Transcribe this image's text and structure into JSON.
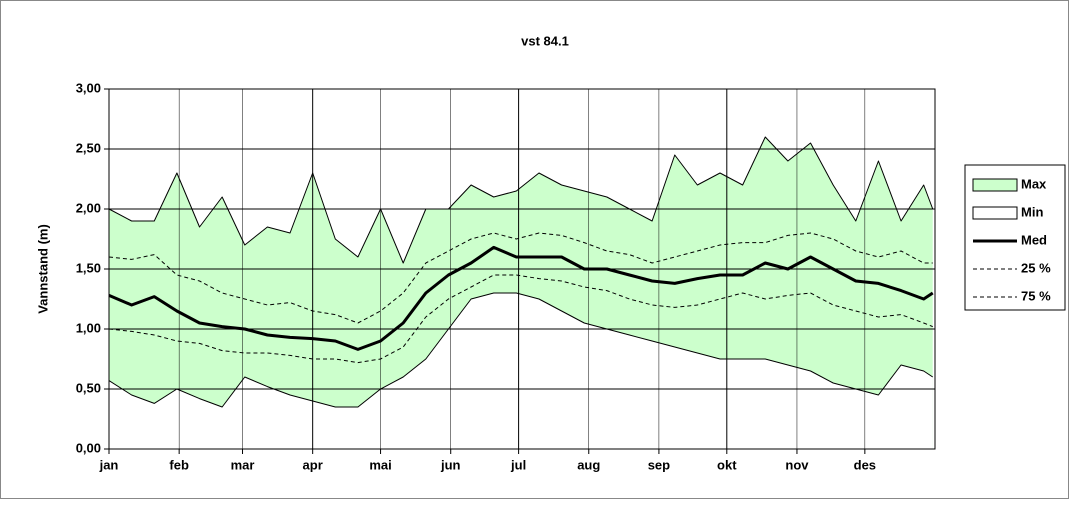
{
  "chart_data": {
    "type": "area-line",
    "title": "vst 84.1",
    "y_label": "Vannstand (m)",
    "x": [
      1,
      11,
      21,
      31,
      41,
      51,
      61,
      71,
      81,
      91,
      101,
      111,
      121,
      131,
      141,
      151,
      161,
      171,
      181,
      191,
      201,
      211,
      221,
      231,
      241,
      251,
      261,
      271,
      281,
      291,
      301,
      311,
      321,
      331,
      341,
      351,
      361,
      365
    ],
    "xlim": [
      1,
      366
    ],
    "xticks": [
      {
        "value": 1,
        "label": "jan"
      },
      {
        "value": 32,
        "label": "feb"
      },
      {
        "value": 60,
        "label": "mar"
      },
      {
        "value": 91,
        "label": "apr"
      },
      {
        "value": 121,
        "label": "mai"
      },
      {
        "value": 152,
        "label": "jun"
      },
      {
        "value": 182,
        "label": "jul"
      },
      {
        "value": 213,
        "label": "aug"
      },
      {
        "value": 244,
        "label": "sep"
      },
      {
        "value": 274,
        "label": "okt"
      },
      {
        "value": 305,
        "label": "nov"
      },
      {
        "value": 335,
        "label": "des"
      }
    ],
    "ylim": [
      0,
      3
    ],
    "yticks": [
      {
        "value": 0,
        "label": "0,00"
      },
      {
        "value": 0.5,
        "label": "0,50"
      },
      {
        "value": 1,
        "label": "1,00"
      },
      {
        "value": 1.5,
        "label": "1,50"
      },
      {
        "value": 2,
        "label": "2,00"
      },
      {
        "value": 2.5,
        "label": "2,50"
      },
      {
        "value": 3,
        "label": "3,00"
      }
    ],
    "grid": true,
    "series": [
      {
        "name": "Max",
        "style": "area",
        "color": "#ccffcc",
        "values": [
          2.0,
          1.9,
          1.9,
          2.3,
          1.85,
          2.1,
          1.7,
          1.85,
          1.8,
          2.3,
          1.75,
          1.6,
          2.0,
          1.55,
          2.0,
          2.0,
          2.2,
          2.1,
          2.15,
          2.3,
          2.2,
          2.15,
          2.1,
          2.0,
          1.9,
          2.45,
          2.2,
          2.3,
          2.2,
          2.6,
          2.4,
          2.55,
          2.2,
          1.9,
          2.4,
          1.9,
          2.2,
          2.0
        ]
      },
      {
        "name": "Min",
        "style": "area",
        "color": "#ffffff",
        "values": [
          0.57,
          0.45,
          0.38,
          0.5,
          0.42,
          0.35,
          0.6,
          0.52,
          0.45,
          0.4,
          0.35,
          0.35,
          0.5,
          0.6,
          0.75,
          1.0,
          1.25,
          1.3,
          1.3,
          1.25,
          1.15,
          1.05,
          1.0,
          0.95,
          0.9,
          0.85,
          0.8,
          0.75,
          0.75,
          0.75,
          0.7,
          0.65,
          0.55,
          0.5,
          0.45,
          0.7,
          0.65,
          0.6
        ]
      },
      {
        "name": "Med",
        "style": "line",
        "color": "#000000",
        "width": 3,
        "values": [
          1.28,
          1.2,
          1.27,
          1.15,
          1.05,
          1.02,
          1.0,
          0.95,
          0.93,
          0.92,
          0.9,
          0.83,
          0.9,
          1.05,
          1.3,
          1.45,
          1.55,
          1.68,
          1.6,
          1.6,
          1.6,
          1.5,
          1.5,
          1.45,
          1.4,
          1.38,
          1.42,
          1.45,
          1.45,
          1.55,
          1.5,
          1.6,
          1.5,
          1.4,
          1.38,
          1.32,
          1.25,
          1.3
        ]
      },
      {
        "name": "25 %",
        "style": "line",
        "dash": true,
        "color": "#000000",
        "width": 1,
        "values": [
          1.0,
          0.98,
          0.95,
          0.9,
          0.88,
          0.82,
          0.8,
          0.8,
          0.78,
          0.75,
          0.75,
          0.72,
          0.75,
          0.85,
          1.1,
          1.25,
          1.35,
          1.45,
          1.45,
          1.42,
          1.4,
          1.35,
          1.32,
          1.25,
          1.2,
          1.18,
          1.2,
          1.25,
          1.3,
          1.25,
          1.28,
          1.3,
          1.2,
          1.15,
          1.1,
          1.12,
          1.05,
          1.02
        ]
      },
      {
        "name": "75 %",
        "style": "line",
        "dash": true,
        "color": "#000000",
        "width": 1,
        "values": [
          1.6,
          1.58,
          1.62,
          1.45,
          1.4,
          1.3,
          1.25,
          1.2,
          1.22,
          1.15,
          1.12,
          1.05,
          1.15,
          1.3,
          1.55,
          1.65,
          1.75,
          1.8,
          1.75,
          1.8,
          1.78,
          1.72,
          1.65,
          1.62,
          1.55,
          1.6,
          1.65,
          1.7,
          1.72,
          1.72,
          1.78,
          1.8,
          1.75,
          1.65,
          1.6,
          1.65,
          1.55,
          1.55
        ]
      }
    ]
  }
}
